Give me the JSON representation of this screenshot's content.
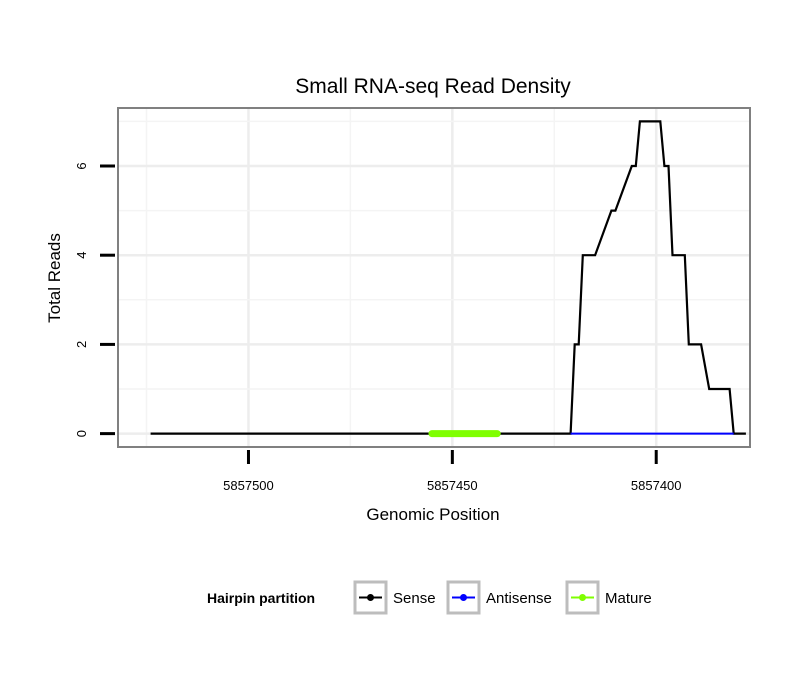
{
  "chart_data": {
    "type": "line",
    "title": "Small RNA-seq Read Density",
    "xlabel": "Genomic Position",
    "ylabel": "Total Reads",
    "x_reversed": true,
    "xlim": [
      5857532,
      5857377
    ],
    "ylim": [
      -0.3,
      7.3
    ],
    "x_ticks": [
      5857500,
      5857450,
      5857400
    ],
    "x_tick_labels": [
      "5857500",
      "5857450",
      "5857400"
    ],
    "y_ticks": [
      0,
      2,
      4,
      6
    ],
    "y_tick_labels": [
      "0",
      "2",
      "4",
      "6"
    ],
    "grid": true,
    "legend": {
      "title": "Hairpin partition",
      "position": "bottom",
      "entries": [
        {
          "label": "Sense",
          "color": "#000000"
        },
        {
          "label": "Antisense",
          "color": "#0000ff"
        },
        {
          "label": "Mature",
          "color": "#7fff00"
        }
      ]
    },
    "series": [
      {
        "name": "Sense",
        "color": "#000000",
        "x": [
          5857524,
          5857421,
          5857420,
          5857419,
          5857418,
          5857416,
          5857415,
          5857411,
          5857410,
          5857406,
          5857405,
          5857404,
          5857403,
          5857401,
          5857399,
          5857398,
          5857397,
          5857396,
          5857395,
          5857393,
          5857392,
          5857390,
          5857389,
          5857387,
          5857385,
          5857384,
          5857382,
          5857381,
          5857380,
          5857378
        ],
        "y": [
          0,
          0,
          2,
          2,
          4,
          4,
          4,
          5,
          5,
          6,
          6,
          7,
          7,
          7,
          7,
          6,
          6,
          4,
          4,
          4,
          2,
          2,
          2,
          1,
          1,
          1,
          1,
          0,
          0,
          0
        ]
      },
      {
        "name": "Antisense",
        "color": "#0000ff",
        "x": [
          5857421,
          5857381
        ],
        "y": [
          0,
          0
        ]
      },
      {
        "name": "Mature",
        "color": "#7fff00",
        "x": [
          5857455,
          5857439
        ],
        "y": [
          0,
          0
        ]
      }
    ]
  }
}
